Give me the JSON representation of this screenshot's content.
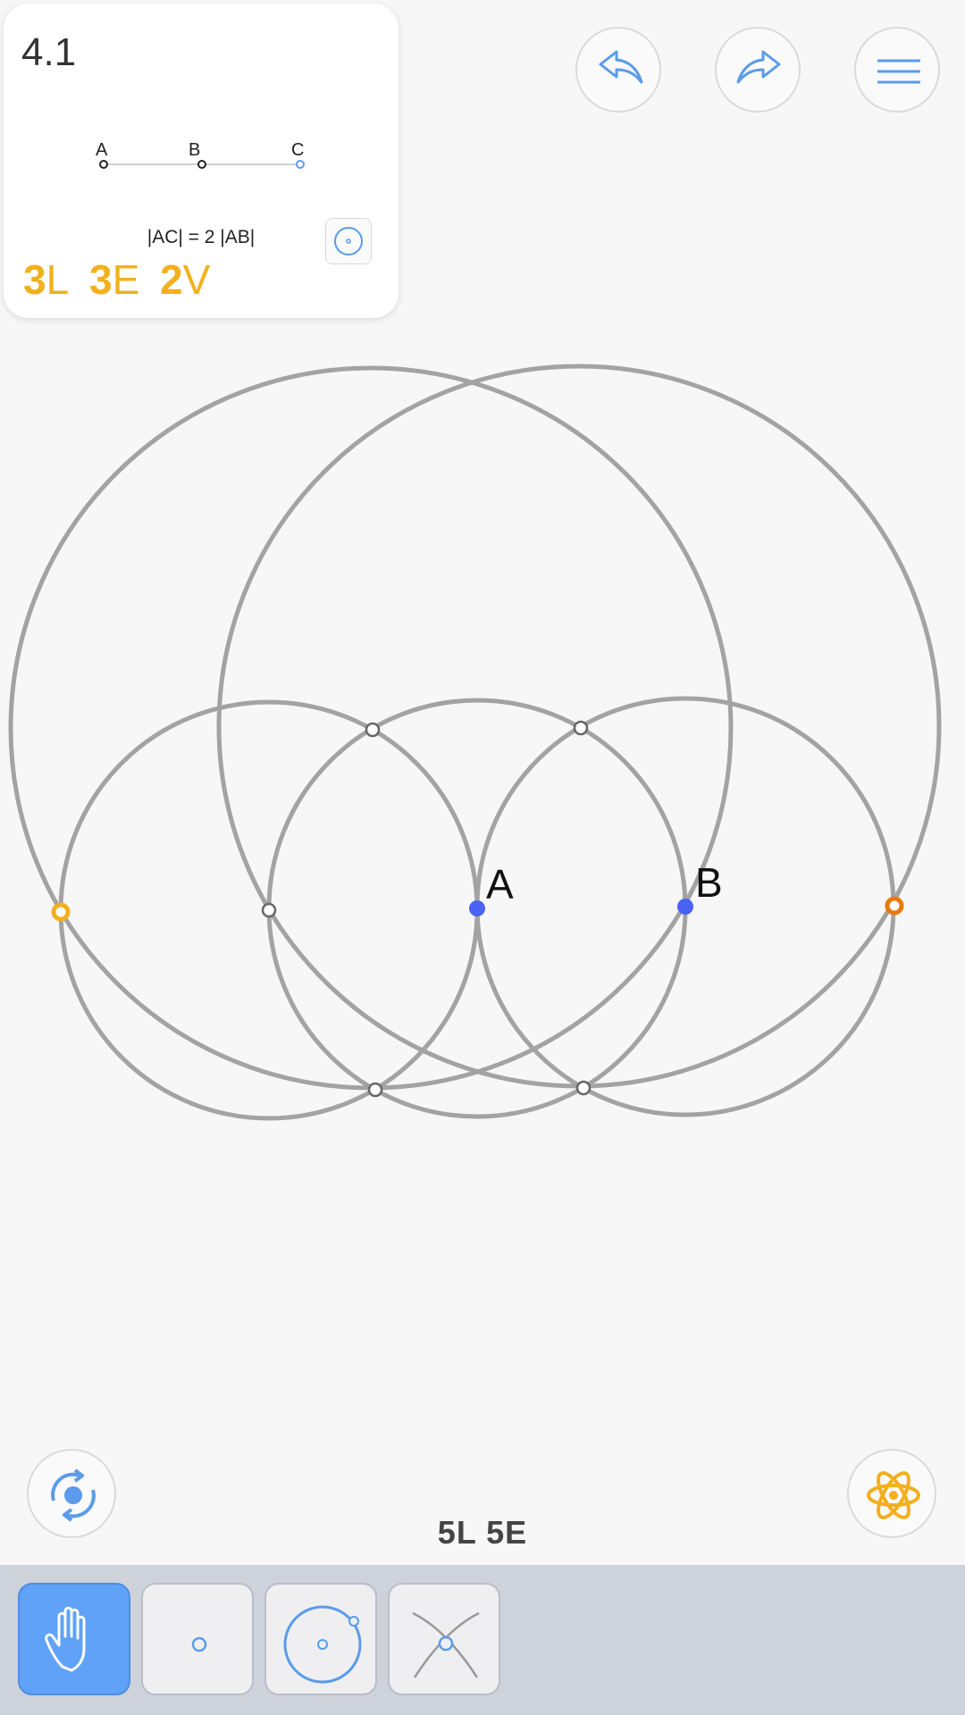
{
  "level": {
    "number": "4.1",
    "goal_points": [
      "A",
      "B",
      "C"
    ],
    "goal_text": "|AC| = 2 |AB|",
    "score": [
      {
        "num": "3",
        "unit": "L"
      },
      {
        "num": "3",
        "unit": "E"
      },
      {
        "num": "2",
        "unit": "V"
      }
    ]
  },
  "construction": {
    "point_labels": [
      "A",
      "B"
    ]
  },
  "current_score": "5L  5E",
  "icons": {
    "undo": "undo-arrow-icon",
    "redo": "redo-arrow-icon",
    "menu": "hamburger-menu-icon",
    "rotate": "rotate-view-icon",
    "hint": "atom-hint-icon",
    "goal_toggle": "circle-preview-icon"
  },
  "toolbar": {
    "tools": [
      {
        "name": "move-tool",
        "icon": "hand-icon",
        "active": true
      },
      {
        "name": "point-tool",
        "icon": "point-icon",
        "active": false
      },
      {
        "name": "circle-tool",
        "icon": "circle-icon",
        "active": false
      },
      {
        "name": "intersect-tool",
        "icon": "intersection-icon",
        "active": false
      }
    ]
  },
  "colors": {
    "accent": "#f2b01e",
    "blue": "#5b9bea",
    "point_blue": "#4a63f5",
    "orange_point": "#e8780f",
    "circle_gray": "#a3a3a3"
  }
}
